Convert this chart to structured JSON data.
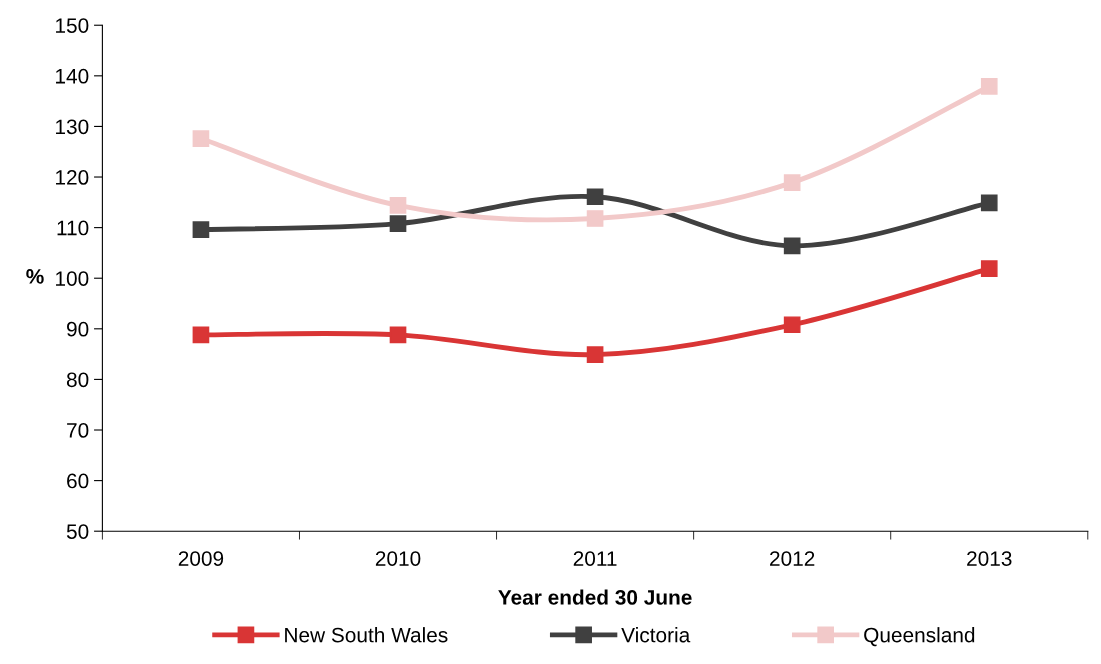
{
  "chart_data": {
    "type": "line",
    "xlabel": "Year ended 30 June",
    "ylabel": "%",
    "categories": [
      "2009",
      "2010",
      "2011",
      "2012",
      "2013"
    ],
    "series": [
      {
        "name": "New South Wales",
        "color": "#d93535",
        "values": [
          88.8,
          88.8,
          84.9,
          90.8,
          101.9
        ]
      },
      {
        "name": "Victoria",
        "color": "#404040",
        "values": [
          109.6,
          110.8,
          116.1,
          106.4,
          114.9
        ]
      },
      {
        "name": "Queensland",
        "color": "#f2c9c9",
        "values": [
          127.6,
          114.4,
          111.8,
          118.9,
          137.9
        ]
      }
    ],
    "ylim": [
      50,
      150
    ],
    "yticks": [
      50,
      60,
      70,
      80,
      90,
      100,
      110,
      120,
      130,
      140,
      150
    ],
    "grid": false,
    "legend": "bottom",
    "marker": "square",
    "line_style": "solid"
  }
}
